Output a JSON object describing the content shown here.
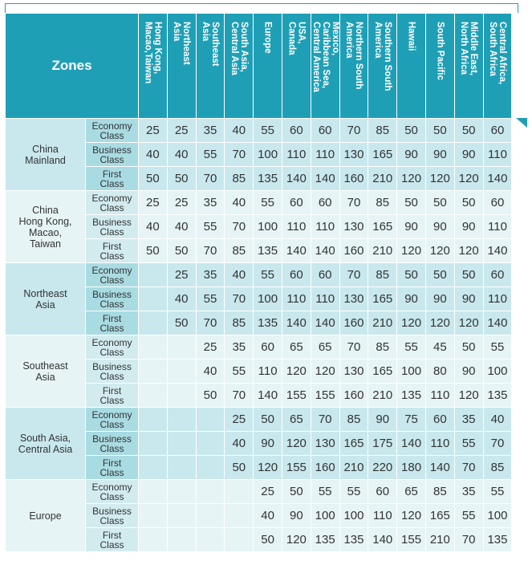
{
  "header": {
    "zones_label": "Zones",
    "columns": [
      "Hong Kong,\nMacao,Taiwan",
      "Northeast\nAsia",
      "Southeast\nAsia",
      "South Asia,\nCentral Asia",
      "Europe",
      "USA,\nCanada",
      "Mexico,\nCaribbean Sea,\nCentral America",
      "Northern South\nAmerica",
      "Southern South\nAmerica",
      "Hawaii",
      "South Pacific",
      "Middle East,\nNorth Africa",
      "Central Africa,\nSouth Africa"
    ]
  },
  "groups": [
    {
      "origin": "China\nMainland",
      "rows": [
        {
          "class": "Economy\nClass",
          "values": [
            "25",
            "25",
            "35",
            "40",
            "55",
            "60",
            "60",
            "70",
            "85",
            "50",
            "50",
            "50",
            "60"
          ]
        },
        {
          "class": "Business\nClass",
          "values": [
            "40",
            "40",
            "55",
            "70",
            "100",
            "110",
            "110",
            "130",
            "165",
            "90",
            "90",
            "90",
            "110"
          ]
        },
        {
          "class": "First\nClass",
          "values": [
            "50",
            "50",
            "70",
            "85",
            "135",
            "140",
            "140",
            "160",
            "210",
            "120",
            "120",
            "120",
            "140"
          ]
        }
      ]
    },
    {
      "origin": "China\nHong Kong,\nMacao,\nTaiwan",
      "rows": [
        {
          "class": "Economy\nClass",
          "values": [
            "25",
            "25",
            "35",
            "40",
            "55",
            "60",
            "60",
            "70",
            "85",
            "50",
            "50",
            "50",
            "60"
          ]
        },
        {
          "class": "Business\nClass",
          "values": [
            "40",
            "40",
            "55",
            "70",
            "100",
            "110",
            "110",
            "130",
            "165",
            "90",
            "90",
            "90",
            "110"
          ]
        },
        {
          "class": "First\nClass",
          "values": [
            "50",
            "50",
            "70",
            "85",
            "135",
            "140",
            "140",
            "160",
            "210",
            "120",
            "120",
            "120",
            "140"
          ]
        }
      ]
    },
    {
      "origin": "Northeast\nAsia",
      "rows": [
        {
          "class": "Economy\nClass",
          "values": [
            "",
            "25",
            "35",
            "40",
            "55",
            "60",
            "60",
            "70",
            "85",
            "50",
            "50",
            "50",
            "60"
          ]
        },
        {
          "class": "Business\nClass",
          "values": [
            "",
            "40",
            "55",
            "70",
            "100",
            "110",
            "110",
            "130",
            "165",
            "90",
            "90",
            "90",
            "110"
          ]
        },
        {
          "class": "First\nClass",
          "values": [
            "",
            "50",
            "70",
            "85",
            "135",
            "140",
            "140",
            "160",
            "210",
            "120",
            "120",
            "120",
            "140"
          ]
        }
      ]
    },
    {
      "origin": "Southeast\nAsia",
      "rows": [
        {
          "class": "Economy\nClass",
          "values": [
            "",
            "",
            "25",
            "35",
            "60",
            "65",
            "65",
            "70",
            "85",
            "55",
            "45",
            "50",
            "55"
          ]
        },
        {
          "class": "Business\nClass",
          "values": [
            "",
            "",
            "40",
            "55",
            "110",
            "120",
            "120",
            "130",
            "165",
            "100",
            "80",
            "90",
            "100"
          ]
        },
        {
          "class": "First\nClass",
          "values": [
            "",
            "",
            "50",
            "70",
            "140",
            "155",
            "155",
            "160",
            "210",
            "135",
            "110",
            "120",
            "135"
          ]
        }
      ]
    },
    {
      "origin": "South Asia,\nCentral Asia",
      "rows": [
        {
          "class": "Economy\nClass",
          "values": [
            "",
            "",
            "",
            "25",
            "50",
            "65",
            "70",
            "85",
            "90",
            "75",
            "60",
            "35",
            "40"
          ]
        },
        {
          "class": "Business\nClass",
          "values": [
            "",
            "",
            "",
            "40",
            "90",
            "120",
            "130",
            "165",
            "175",
            "140",
            "110",
            "55",
            "70"
          ]
        },
        {
          "class": "First\nClass",
          "values": [
            "",
            "",
            "",
            "50",
            "120",
            "155",
            "160",
            "210",
            "220",
            "180",
            "140",
            "70",
            "85"
          ]
        }
      ]
    },
    {
      "origin": "Europe",
      "rows": [
        {
          "class": "Economy\nClass",
          "values": [
            "",
            "",
            "",
            "",
            "25",
            "50",
            "55",
            "55",
            "60",
            "65",
            "85",
            "35",
            "55"
          ]
        },
        {
          "class": "Business\nClass",
          "values": [
            "",
            "",
            "",
            "",
            "40",
            "90",
            "100",
            "100",
            "110",
            "120",
            "165",
            "55",
            "100"
          ]
        },
        {
          "class": "First\nClass",
          "values": [
            "",
            "",
            "",
            "",
            "50",
            "120",
            "135",
            "135",
            "140",
            "155",
            "210",
            "70",
            "135"
          ]
        }
      ]
    }
  ]
}
